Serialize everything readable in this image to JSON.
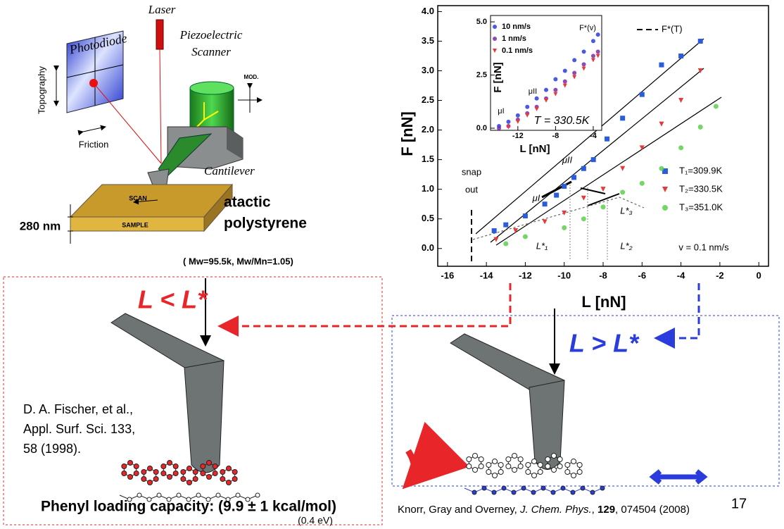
{
  "slide": {
    "left_diagram": {
      "laser": "Laser",
      "scanner": [
        "Piezoelectric",
        "Scanner"
      ],
      "photodiode": "Photodiode",
      "topography": "Topography",
      "friction": "Friction",
      "mod": "MOD.",
      "cantilever": "Cantilever",
      "scan": "SCAN",
      "sample": "SAMPLE",
      "thickness": "280 nm",
      "material": [
        "atactic",
        "polystyrene"
      ],
      "molecular_weight": "( Mw=95.5k, Mw/Mn=1.05)"
    },
    "low_load": {
      "label": "L < L*",
      "reference": [
        "D. A. Fischer, et al.,",
        "Appl. Surf. Sci. 133,",
        "58 (1998)."
      ],
      "capacity": "Phenyl loading capacity: (9.9 ± 1 kcal/mol)",
      "energy": "(0.4 eV)"
    },
    "high_load": {
      "label": "L > L*"
    },
    "citation": [
      "Knorr, Gray and Overney, ",
      "J. Chem. Phys.",
      ", ",
      "129",
      ", 074504 (2008)"
    ],
    "page_number": "17"
  },
  "chart_data": [
    {
      "type": "scatter",
      "x_label": "L [nN]",
      "y_label": "F [nN]",
      "xlim": [
        -16.5,
        0.5
      ],
      "ylim": [
        -0.3,
        4.1
      ],
      "xticks": [
        -16,
        -14,
        -12,
        -10,
        -8,
        -6,
        -4,
        -2,
        0
      ],
      "yticks": [
        {
          "value": 0,
          "label": "0.0"
        },
        0.5,
        {
          "value": 1,
          "label": "1.0"
        },
        1.5,
        {
          "value": 2,
          "label": "2.0"
        },
        2.5,
        {
          "value": 3,
          "label": "3.0"
        },
        3.5,
        {
          "value": 4,
          "label": "4.0"
        }
      ],
      "annotations": [
        "F*(T)",
        "snap",
        "out",
        "μI",
        "μII",
        "L*₁",
        "L*₂",
        "L*₃",
        "v = 0.1 nm/s"
      ],
      "series": [
        {
          "name": "T₁=309.9K",
          "color": "#2a5cdc",
          "marker": "square",
          "x": [
            -13.6,
            -13,
            -12,
            -11,
            -10.4,
            -10,
            -9.5,
            -9,
            -8.5,
            -7.8,
            -7,
            -6,
            -5,
            -4,
            -3
          ],
          "values": [
            0.3,
            0.4,
            0.55,
            0.75,
            0.9,
            1.05,
            1.2,
            1.35,
            1.5,
            1.85,
            2.2,
            2.6,
            3.1,
            3.25,
            3.5
          ]
        },
        {
          "name": "T₂=330.5K",
          "color": "#e8383a",
          "marker": "triangle",
          "x": [
            -13.5,
            -12.5,
            -11,
            -10,
            -9,
            -8,
            -7,
            -6,
            -5,
            -4,
            -3
          ],
          "values": [
            0.15,
            0.3,
            0.45,
            0.6,
            0.85,
            1.0,
            1.35,
            1.7,
            2.1,
            2.5,
            3.0
          ]
        },
        {
          "name": "T₃=351.0K",
          "color": "#5ccf4a",
          "marker": "circle",
          "x": [
            -13,
            -12,
            -10,
            -9,
            -8,
            -7,
            -6,
            -5,
            -4,
            -3,
            -2.2
          ],
          "values": [
            0.08,
            0.2,
            0.35,
            0.5,
            0.7,
            0.95,
            1.1,
            1.35,
            1.7,
            2.05,
            2.4
          ]
        }
      ]
    },
    {
      "type": "scatter",
      "x_label": "L [nN]",
      "y_label": "F [nN]",
      "xlim": [
        -14.9,
        -3.1
      ],
      "ylim": [
        -0.1,
        5.3
      ],
      "xticks": [
        -12,
        -8,
        -4
      ],
      "yticks": [
        {
          "value": 0,
          "label": "0.0"
        },
        2.5,
        {
          "value": 5,
          "label": "5.0"
        }
      ],
      "annotations": [
        "F*(v)",
        "μII",
        "μI",
        "T = 330.5K"
      ],
      "series": [
        {
          "name": "10 nm/s",
          "color": "#2a3cdc",
          "marker": "circle",
          "x": [
            -14,
            -13,
            -12,
            -11,
            -10,
            -9,
            -8,
            -7,
            -6,
            -5,
            -4,
            -3.5
          ],
          "values": [
            0.1,
            0.3,
            0.6,
            1.0,
            1.4,
            1.8,
            2.3,
            2.7,
            3.2,
            3.6,
            4.1,
            4.4
          ]
        },
        {
          "name": "1 nm/s",
          "color": "#7a2aa8",
          "marker": "circle",
          "x": [
            -14,
            -13,
            -12,
            -11,
            -10,
            -9,
            -8,
            -7,
            -6,
            -5,
            -4,
            -3.5
          ],
          "values": [
            0.0,
            0.1,
            0.4,
            0.7,
            1.0,
            1.4,
            1.8,
            2.2,
            2.6,
            3.0,
            3.4,
            3.6
          ]
        },
        {
          "name": "0.1 nm/s",
          "color": "#e8383a",
          "marker": "triangle",
          "x": [
            -13,
            -12,
            -11,
            -10,
            -9,
            -8,
            -7,
            -6,
            -5,
            -4,
            -3.5
          ],
          "values": [
            0.05,
            0.3,
            0.6,
            0.9,
            1.3,
            1.6,
            2.0,
            2.4,
            2.8,
            3.2,
            3.4
          ]
        }
      ]
    }
  ]
}
